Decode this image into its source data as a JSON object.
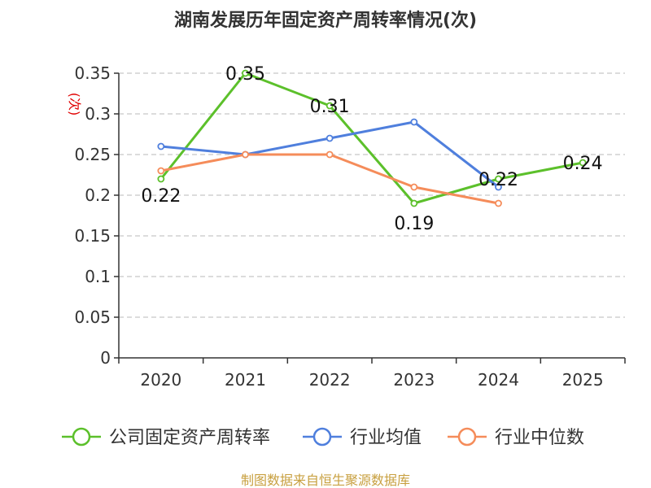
{
  "chart_data": {
    "type": "line",
    "title": "湖南发展历年固定资产周转率情况(次)",
    "ylabel": "(次)",
    "xlabel": "",
    "categories": [
      "2020",
      "2021",
      "2022",
      "2023",
      "2024",
      "2025"
    ],
    "yticks": [
      "0",
      "0.05",
      "0.1",
      "0.15",
      "0.2",
      "0.25",
      "0.3",
      "0.35"
    ],
    "ylim": [
      0,
      0.35
    ],
    "grid": true,
    "legend_position": "bottom",
    "series": [
      {
        "name": "公司固定资产周转率",
        "color": "#5cc02b",
        "values": [
          0.22,
          0.35,
          0.31,
          0.19,
          0.22,
          0.24
        ],
        "labels": [
          "0.22",
          "0.35",
          "0.31",
          "0.19",
          "0.22",
          "0.24"
        ]
      },
      {
        "name": "行业均值",
        "color": "#4f7fdd",
        "values": [
          0.26,
          0.25,
          0.27,
          0.29,
          0.21,
          null
        ]
      },
      {
        "name": "行业中位数",
        "color": "#f58c5a",
        "values": [
          0.23,
          0.25,
          0.25,
          0.21,
          0.19,
          null
        ]
      }
    ],
    "source": "制图数据来自恒生聚源数据库"
  }
}
